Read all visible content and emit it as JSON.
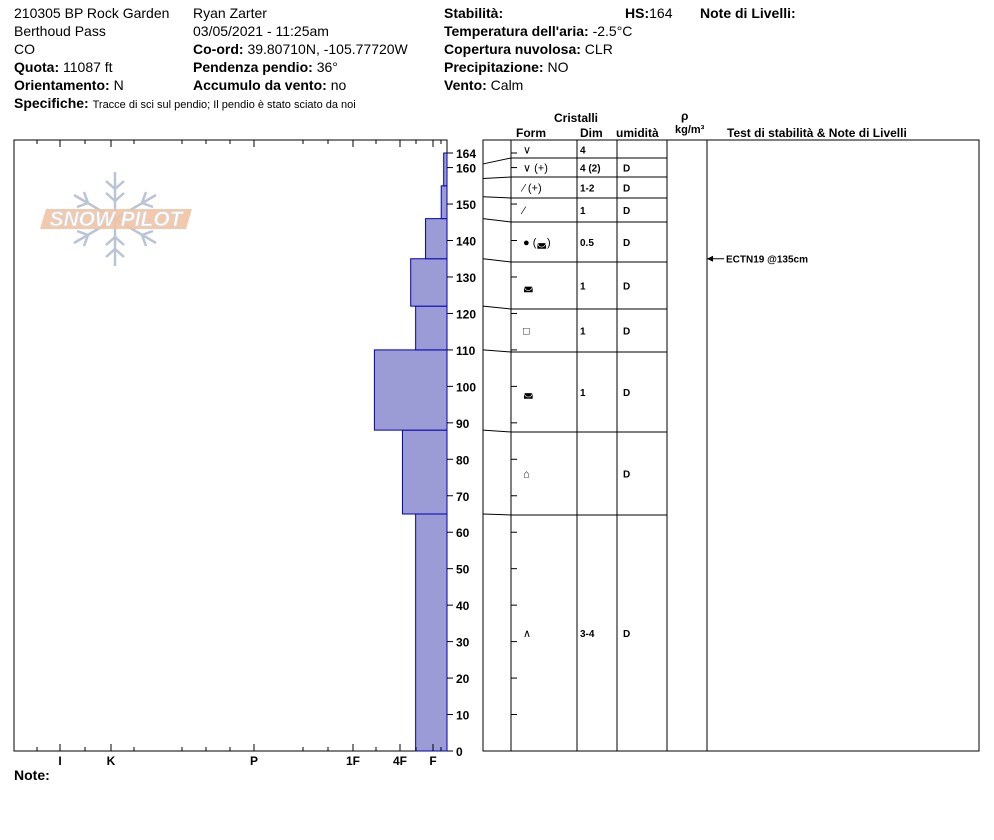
{
  "header": {
    "site": "210305 BP Rock Garden",
    "location": "Berthoud Pass",
    "state": "CO",
    "elevation_label": "Quota:",
    "elevation_value": "11087 ft",
    "aspect_label": "Orientamento:",
    "aspect_value": "N",
    "specifics_label": "Specifiche:",
    "specifics_value": "Tracce di sci sul pendio;  Il pendio è stato sciato da noi",
    "observer": "Ryan Zarter",
    "datetime": "03/05/2021 - 11:25am",
    "coord_label": "Co-ord:",
    "coord_value": "39.80710N, -105.77720W",
    "slope_label": "Pendenza pendio:",
    "slope_value": "36°",
    "wind_load_label": "Accumulo da vento:",
    "wind_load_value": "no",
    "stability_label": "Stabilità:",
    "stability_value": "",
    "hs_label": "HS:",
    "hs_value": "164",
    "air_temp_label": "Temperatura dell'aria:",
    "air_temp_value": "-2.5°C",
    "sky_label": "Copertura nuvolosa:",
    "sky_value": "CLR",
    "precip_label": "Precipitazione:",
    "precip_value": "NO",
    "wind_label": "Vento:",
    "wind_value": "Calm",
    "layer_notes_label": "Note di Livelli:"
  },
  "footer": {
    "notes_label": "Note:"
  },
  "logo": {
    "text": "SNOW PILOT"
  },
  "columns": {
    "crystals": "Cristalli",
    "form": "Form",
    "size": "Dim",
    "moisture": "umidità",
    "rho": "ρ",
    "density_unit": "kg/m³",
    "tests_notes": "Test di stabilità & Note di Livelli"
  },
  "chart_data": {
    "type": "bar",
    "orientation": "horizontal",
    "title": "",
    "ylim": [
      0,
      164
    ],
    "y_ticks": [
      0,
      10,
      20,
      30,
      40,
      50,
      60,
      70,
      80,
      90,
      100,
      110,
      120,
      130,
      140,
      150,
      160,
      164
    ],
    "hardness_categories": [
      "I",
      "K",
      "P",
      "1F",
      "4F",
      "F"
    ],
    "hardness_index": {
      "F": 1,
      "4F": 2,
      "1F": 3,
      "P": 4,
      "K": 5,
      "I": 6
    },
    "bar_color": "#9b9bd6",
    "bar_edge_color": "#0000b4",
    "hardness_layers": [
      {
        "bottom": 0,
        "top": 65,
        "hardness": 1.9
      },
      {
        "bottom": 65,
        "top": 88,
        "hardness": 2.7
      },
      {
        "bottom": 88,
        "top": 110,
        "hardness": 4.4
      },
      {
        "bottom": 110,
        "top": 122,
        "hardness": 1.9
      },
      {
        "bottom": 122,
        "top": 135,
        "hardness": 2.2
      },
      {
        "bottom": 135,
        "top": 146,
        "hardness": 1.3
      },
      {
        "bottom": 146,
        "top": 155,
        "hardness": 0.35
      },
      {
        "bottom": 155,
        "top": 164,
        "hardness": 0.2
      }
    ],
    "layers": [
      {
        "top": 164,
        "bottom": 161,
        "form": "∨",
        "size": "4",
        "moisture": ""
      },
      {
        "top": 161,
        "bottom": 157,
        "form": "∨ (+)",
        "size": "4 (2)",
        "moisture": "D"
      },
      {
        "top": 157,
        "bottom": 152,
        "form": "⁄ (+)",
        "size": "1-2",
        "moisture": "D"
      },
      {
        "top": 152,
        "bottom": 146,
        "form": "⁄",
        "size": "1",
        "moisture": "D"
      },
      {
        "top": 146,
        "bottom": 135,
        "form": "● (◛)",
        "size": "0.5",
        "moisture": "D"
      },
      {
        "top": 135,
        "bottom": 122,
        "form": "◛",
        "size": "1",
        "moisture": "D"
      },
      {
        "top": 122,
        "bottom": 110,
        "form": "□",
        "size": "1",
        "moisture": "D"
      },
      {
        "top": 110,
        "bottom": 88,
        "form": "◛",
        "size": "1",
        "moisture": "D"
      },
      {
        "top": 88,
        "bottom": 65,
        "form": "⌂",
        "size": "",
        "moisture": "D"
      },
      {
        "top": 65,
        "bottom": 0,
        "form": "∧",
        "size": "3-4",
        "moisture": "D"
      }
    ],
    "stability_tests": [
      {
        "height": 135,
        "label": "ECTN19 @135cm"
      }
    ]
  }
}
